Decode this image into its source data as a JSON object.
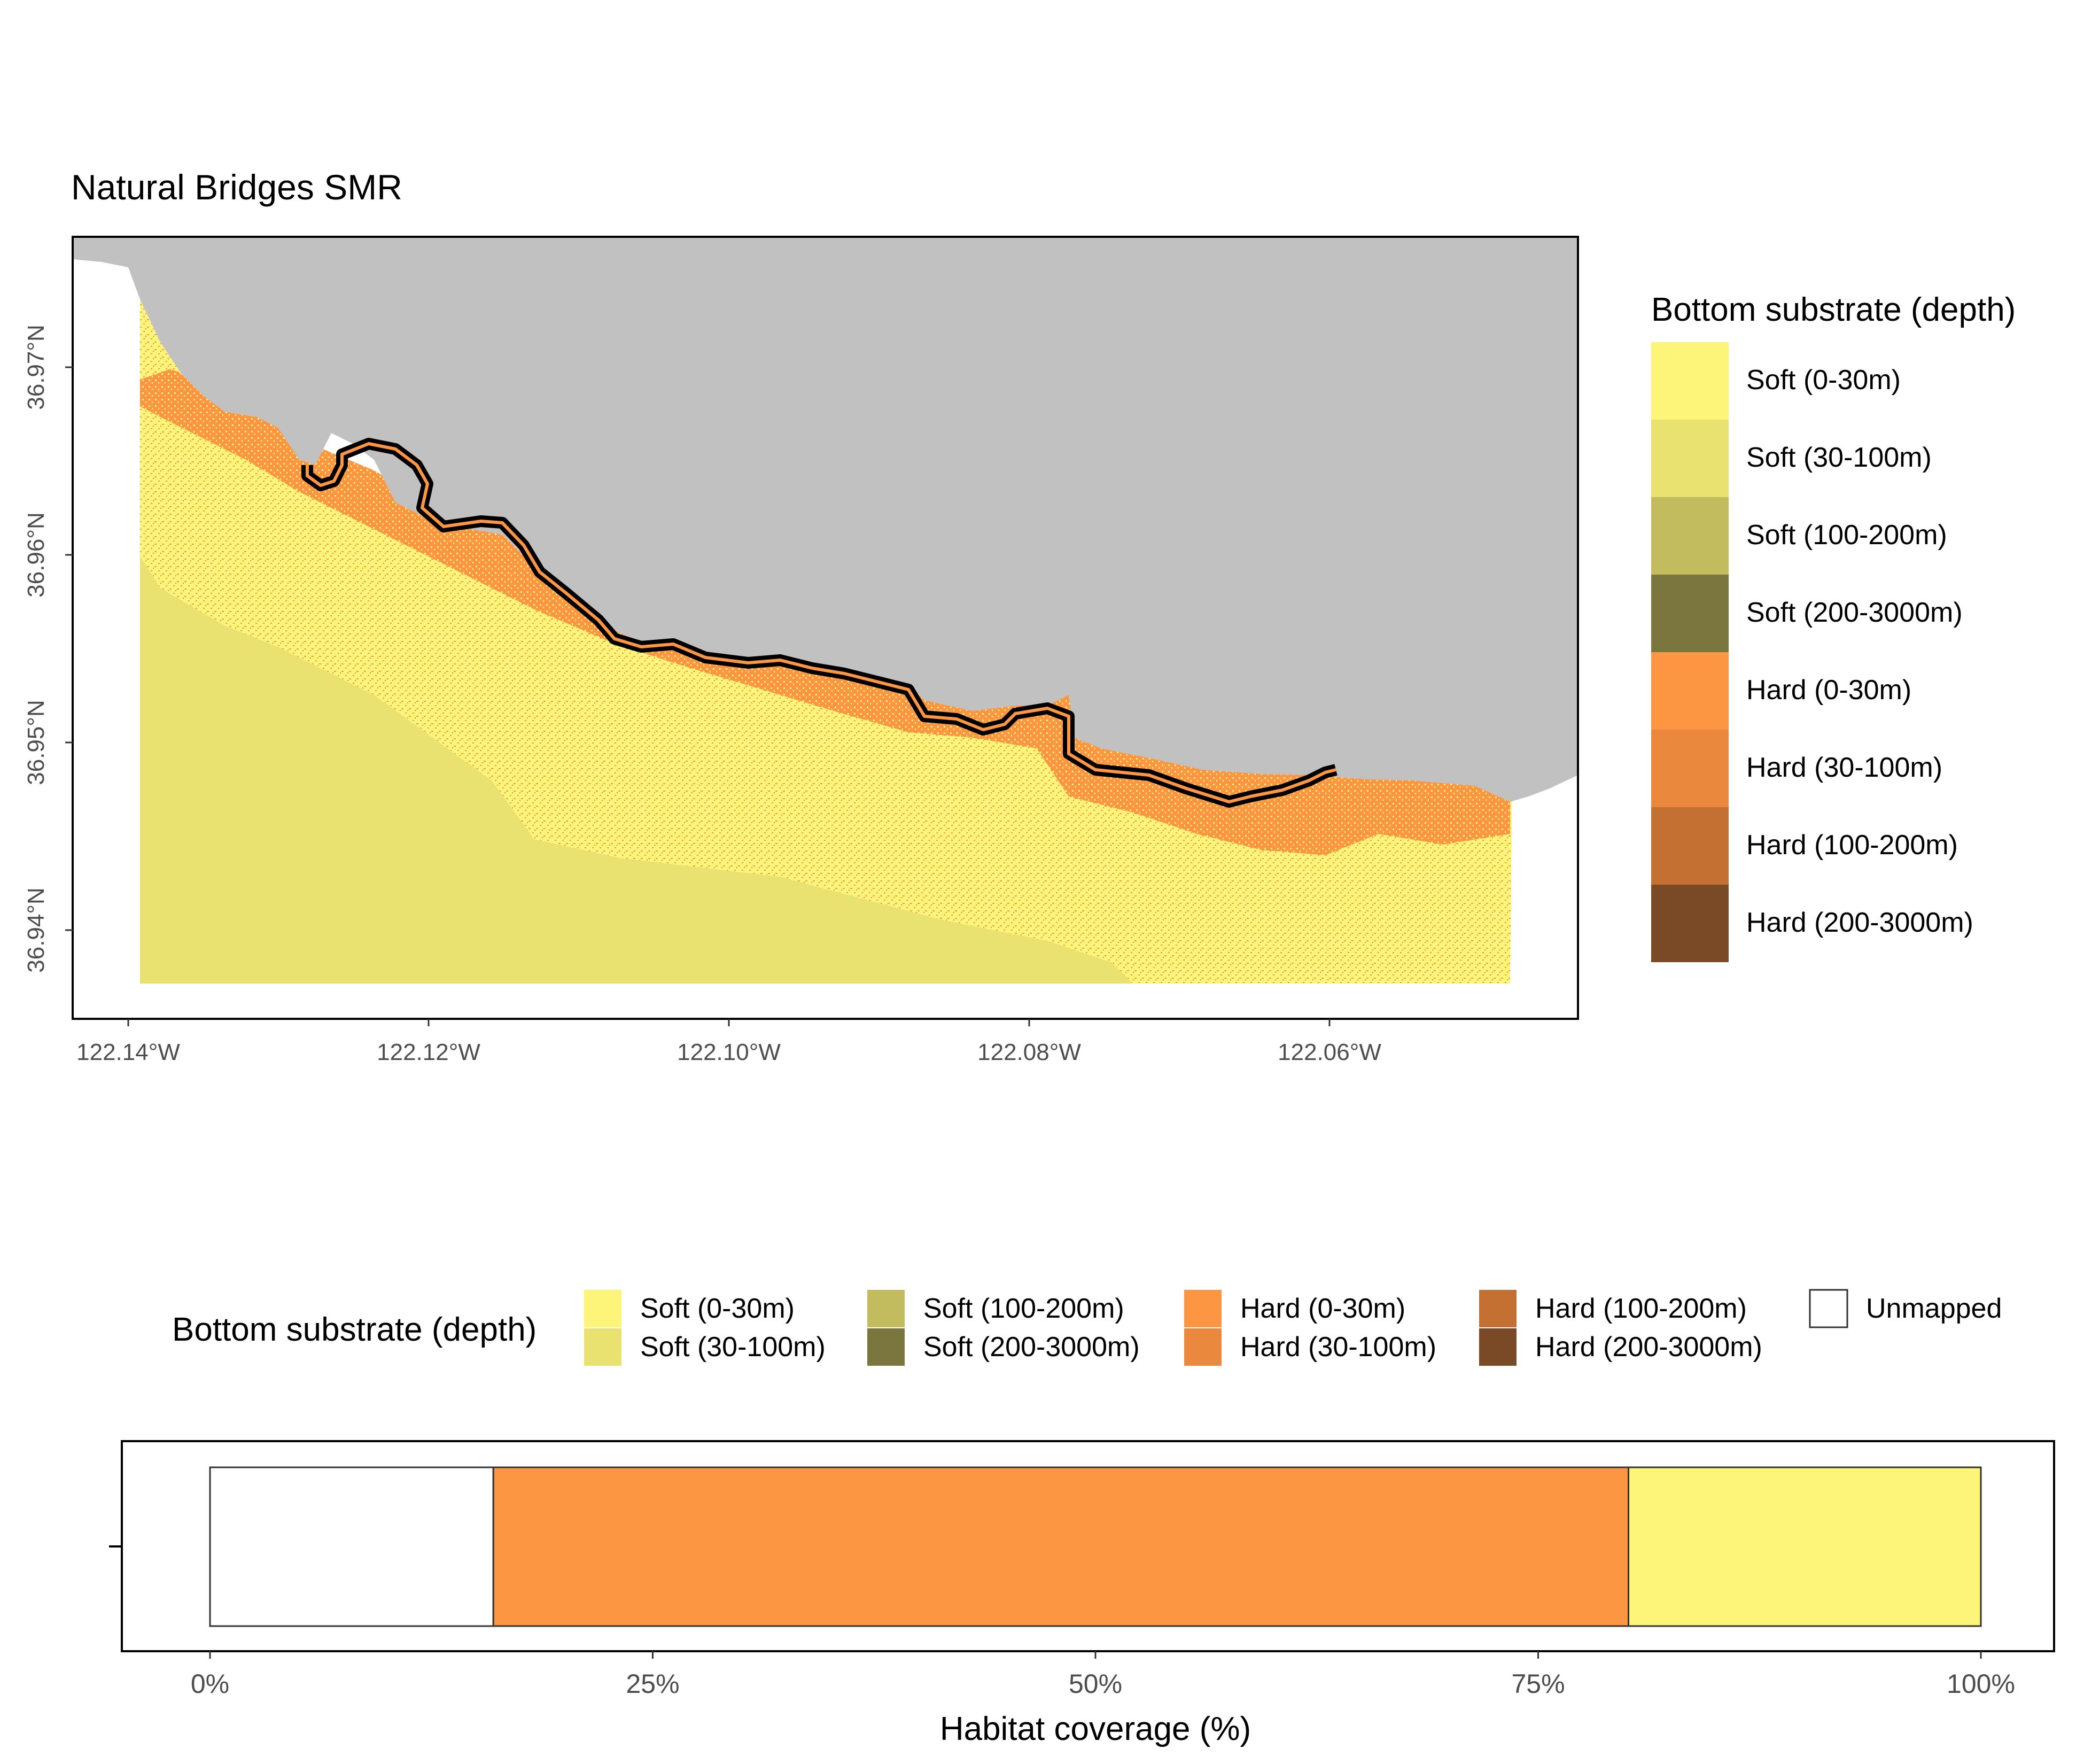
{
  "map": {
    "title": "Natural Bridges SMR",
    "x_ticks": [
      "122.14°W",
      "122.12°W",
      "122.10°W",
      "122.08°W",
      "122.06°W"
    ],
    "y_ticks": [
      "36.97°N",
      "36.96°N",
      "36.95°N",
      "36.94°N"
    ],
    "land_color": "#c1c1c1",
    "boundary_color": "#000000"
  },
  "legend": {
    "title": "Bottom substrate (depth)",
    "items": [
      {
        "label": "Soft (0-30m)",
        "color": "#fdf47a"
      },
      {
        "label": "Soft (30-100m)",
        "color": "#e9e170"
      },
      {
        "label": "Soft (100-200m)",
        "color": "#c3bc5e"
      },
      {
        "label": "Soft (200-3000m)",
        "color": "#7a763d"
      },
      {
        "label": "Hard (0-30m)",
        "color": "#fd9642"
      },
      {
        "label": "Hard (30-100m)",
        "color": "#ea893d"
      },
      {
        "label": "Hard (100-200m)",
        "color": "#c57033"
      },
      {
        "label": "Hard (200-3000m)",
        "color": "#7a4925"
      }
    ]
  },
  "bar_legend": {
    "title": "Bottom substrate (depth)",
    "items": [
      {
        "label": "Soft (0-30m)",
        "color": "#fdf47a"
      },
      {
        "label": "Soft (30-100m)",
        "color": "#e9e170"
      },
      {
        "label": "Soft (100-200m)",
        "color": "#c3bc5e"
      },
      {
        "label": "Soft (200-3000m)",
        "color": "#7a763d"
      },
      {
        "label": "Hard (0-30m)",
        "color": "#fd9642"
      },
      {
        "label": "Hard (30-100m)",
        "color": "#ea893d"
      },
      {
        "label": "Hard (100-200m)",
        "color": "#c57033"
      },
      {
        "label": "Hard (200-3000m)",
        "color": "#7a4925"
      },
      {
        "label": "Unmapped",
        "color": "#ffffff"
      }
    ]
  },
  "chart_data": {
    "type": "bar",
    "orientation": "horizontal-stacked",
    "xlabel": "Habitat coverage (%)",
    "x_ticks": [
      "0%",
      "25%",
      "50%",
      "75%",
      "100%"
    ],
    "xlim": [
      0,
      100
    ],
    "segments": [
      {
        "name": "Unmapped",
        "value": 16.0,
        "color": "#ffffff"
      },
      {
        "name": "Hard (0-30m)",
        "value": 64.1,
        "color": "#fd9642"
      },
      {
        "name": "Soft (0-30m)",
        "value": 19.9,
        "color": "#fdf47a"
      }
    ]
  }
}
